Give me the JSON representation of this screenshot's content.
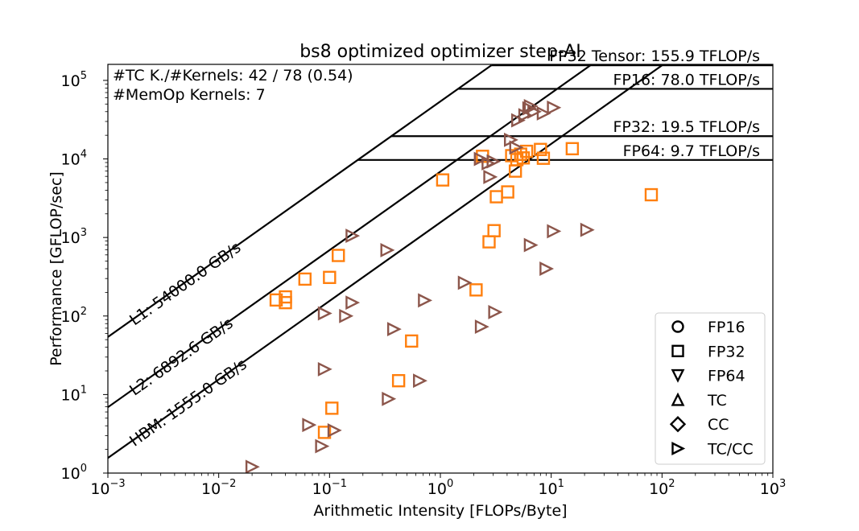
{
  "chart_data": {
    "type": "scatter",
    "title": "bs8 optimized optimizer step-AI",
    "xlabel": "Arithmetic Intensity [FLOPs/Byte]",
    "ylabel": "Performance [GFLOP/sec]",
    "x_scale": "log",
    "y_scale": "log",
    "xlim": [
      0.001,
      1000
    ],
    "ylim": [
      1,
      160000
    ],
    "xticks": [
      {
        "value": 0.001,
        "base": "10",
        "exp": "−3"
      },
      {
        "value": 0.01,
        "base": "10",
        "exp": "−2"
      },
      {
        "value": 0.1,
        "base": "10",
        "exp": "−1"
      },
      {
        "value": 1,
        "base": "10",
        "exp": "0"
      },
      {
        "value": 10,
        "base": "10",
        "exp": "1"
      },
      {
        "value": 100,
        "base": "10",
        "exp": "2"
      },
      {
        "value": 1000,
        "base": "10",
        "exp": "3"
      }
    ],
    "yticks": [
      {
        "value": 1,
        "base": "10",
        "exp": "0"
      },
      {
        "value": 10,
        "base": "10",
        "exp": "1"
      },
      {
        "value": 100,
        "base": "10",
        "exp": "2"
      },
      {
        "value": 1000,
        "base": "10",
        "exp": "3"
      },
      {
        "value": 10000,
        "base": "10",
        "exp": "4"
      },
      {
        "value": 100000,
        "base": "10",
        "exp": "5"
      }
    ],
    "grid": false,
    "ceilings": [
      {
        "label": "FP32 Tensor: 155.9 TFLOP/s",
        "gflops": 155900
      },
      {
        "label": "FP16: 78.0 TFLOP/s",
        "gflops": 78000
      },
      {
        "label": "FP32: 19.5 TFLOP/s",
        "gflops": 19500
      },
      {
        "label": "FP64: 9.7 TFLOP/s",
        "gflops": 9700
      }
    ],
    "bandwidths": [
      {
        "label": "L1: 54000.0 GB/s",
        "gbps": 54000
      },
      {
        "label": "L2: 6892.6 GB/s",
        "gbps": 6892.6
      },
      {
        "label": "HBM: 1555.0 GB/s",
        "gbps": 1555
      }
    ],
    "annotations": [
      "#TC K./#Kernels: 42 / 78 (0.54)",
      "#MemOp Kernels: 7"
    ],
    "legend": {
      "placement": "lower-right",
      "entries": [
        {
          "label": "FP16",
          "marker": "circle"
        },
        {
          "label": "FP32",
          "marker": "square"
        },
        {
          "label": "FP64",
          "marker": "triangle-down"
        },
        {
          "label": "TC",
          "marker": "triangle-up"
        },
        {
          "label": "CC",
          "marker": "diamond"
        },
        {
          "label": "TC/CC",
          "marker": "triangle-right"
        }
      ]
    },
    "series": [
      {
        "name": "FP32",
        "marker": "square",
        "color": "#ff7f0e",
        "points": [
          [
            0.033,
            160
          ],
          [
            0.04,
            175
          ],
          [
            0.04,
            148
          ],
          [
            0.06,
            295
          ],
          [
            0.1,
            310
          ],
          [
            0.12,
            590
          ],
          [
            0.09,
            3.3
          ],
          [
            0.105,
            6.7
          ],
          [
            0.42,
            15
          ],
          [
            0.55,
            48
          ],
          [
            1.05,
            5400
          ],
          [
            2.1,
            215
          ],
          [
            2.75,
            880
          ],
          [
            3.05,
            1220
          ],
          [
            3.2,
            3300
          ],
          [
            4.05,
            3800
          ],
          [
            2.4,
            10800
          ],
          [
            4.4,
            11000
          ],
          [
            4.75,
            7000
          ],
          [
            4.9,
            9800
          ],
          [
            5.3,
            11500
          ],
          [
            5.6,
            10300
          ],
          [
            6.0,
            12500
          ],
          [
            8.0,
            13200
          ],
          [
            8.5,
            10200
          ],
          [
            15.5,
            13500
          ],
          [
            80,
            3500
          ]
        ]
      },
      {
        "name": "TC/CC",
        "marker": "triangle-right",
        "color": "#8c564b",
        "points": [
          [
            0.02,
            1.2
          ],
          [
            0.065,
            4.1
          ],
          [
            0.085,
            2.2
          ],
          [
            0.09,
            21
          ],
          [
            0.09,
            108
          ],
          [
            0.11,
            3.5
          ],
          [
            0.14,
            100
          ],
          [
            0.16,
            148
          ],
          [
            0.16,
            1050
          ],
          [
            0.34,
            8.8
          ],
          [
            0.38,
            68
          ],
          [
            0.33,
            690
          ],
          [
            0.65,
            15
          ],
          [
            0.72,
            158
          ],
          [
            1.65,
            265
          ],
          [
            2.35,
            73
          ],
          [
            3.1,
            112
          ],
          [
            2.3,
            10000
          ],
          [
            2.7,
            8800
          ],
          [
            2.8,
            5900
          ],
          [
            3.0,
            9300
          ],
          [
            4.3,
            17500
          ],
          [
            4.8,
            14000
          ],
          [
            5.0,
            31000
          ],
          [
            5.8,
            36000
          ],
          [
            6.3,
            44000
          ],
          [
            7.0,
            40000
          ],
          [
            6.5,
            47000
          ],
          [
            8.5,
            38000
          ],
          [
            10.5,
            45000
          ],
          [
            6.5,
            800
          ],
          [
            9.0,
            400
          ],
          [
            10.5,
            1200
          ],
          [
            21,
            1250
          ]
        ]
      }
    ]
  }
}
